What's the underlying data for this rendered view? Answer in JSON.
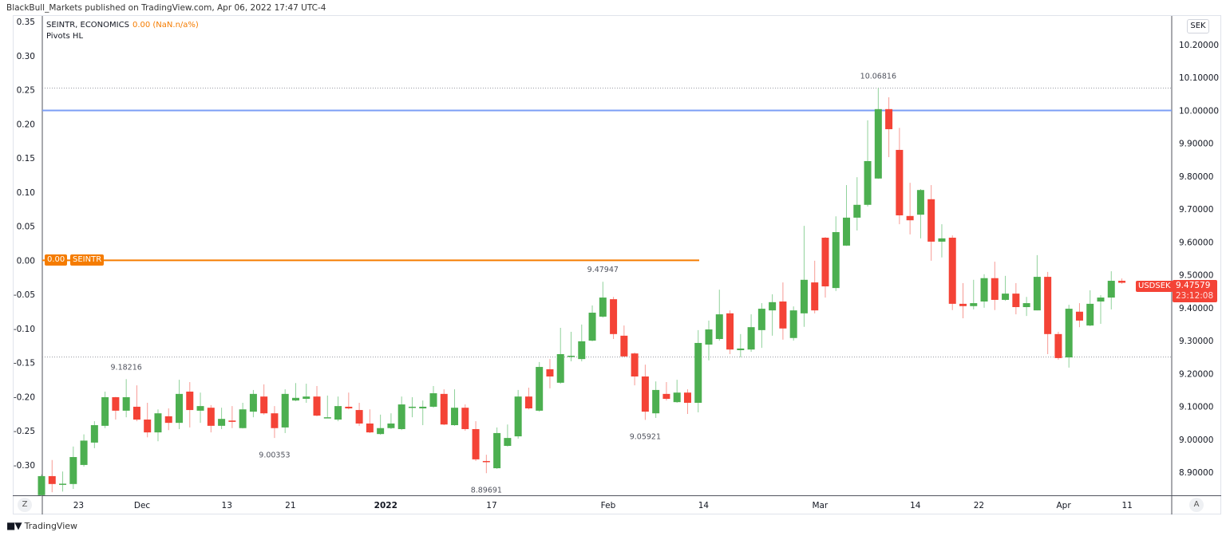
{
  "header": {
    "published": "BlackBull_Markets published on TradingView.com, Apr 06, 2022 17:47 UTC-4"
  },
  "legend": {
    "symbol": "SEINTR, ECONOMICS",
    "value": "0.00 (NaN.n/a%)",
    "indicator": "Pivots HL"
  },
  "currency_button": "SEK",
  "left_axis": {
    "labels": [
      "0.35",
      "0.30",
      "0.25",
      "0.20",
      "0.15",
      "0.10",
      "0.05",
      "0.00",
      "-0.05",
      "-0.10",
      "-0.15",
      "-0.20",
      "-0.25",
      "-0.30"
    ],
    "values": [
      0.35,
      0.3,
      0.25,
      0.2,
      0.15,
      0.1,
      0.05,
      0.0,
      -0.05,
      -0.1,
      -0.15,
      -0.2,
      -0.25,
      -0.3
    ]
  },
  "right_axis": {
    "labels": [
      "10.20000",
      "10.10000",
      "10.00000",
      "9.90000",
      "9.80000",
      "9.70000",
      "9.60000",
      "9.50000",
      "9.40000",
      "9.30000",
      "9.20000",
      "9.10000",
      "9.00000",
      "8.90000"
    ],
    "values": [
      10.2,
      10.1,
      10.0,
      9.9,
      9.8,
      9.7,
      9.6,
      9.5,
      9.4,
      9.3,
      9.2,
      9.1,
      9.0,
      8.9
    ]
  },
  "time_axis": [
    {
      "label": "23",
      "index": 3.5,
      "bold": false
    },
    {
      "label": "Dec",
      "index": 9.5,
      "bold": false
    },
    {
      "label": "13",
      "index": 17.5,
      "bold": false
    },
    {
      "label": "21",
      "index": 23.5,
      "bold": false
    },
    {
      "label": "2022",
      "index": 32.5,
      "bold": true
    },
    {
      "label": "17",
      "index": 42.5,
      "bold": false
    },
    {
      "label": "Feb",
      "index": 53.5,
      "bold": false
    },
    {
      "label": "14",
      "index": 62.5,
      "bold": false
    },
    {
      "label": "Mar",
      "index": 73.5,
      "bold": false
    },
    {
      "label": "14",
      "index": 82.5,
      "bold": false
    },
    {
      "label": "22",
      "index": 88.5,
      "bold": false
    },
    {
      "label": "Apr",
      "index": 96.5,
      "bold": false
    },
    {
      "label": "11",
      "index": 102.5,
      "bold": false
    }
  ],
  "buttons": {
    "zoom": "Z",
    "auto": "A"
  },
  "seintr": {
    "value_label": "0.00",
    "name_label": "SEINTR",
    "value": 0.0,
    "color": "#f57c00"
  },
  "usdsek": {
    "name_label": "USDSEK",
    "price_label": "9.47579",
    "countdown": "23:12:08",
    "color": "#f44336"
  },
  "levels": {
    "resistance": 10.0,
    "resistance_color": "#7b9ef5",
    "dotted": [
      10.06816,
      9.25
    ]
  },
  "pivots": [
    {
      "label": "9.18216",
      "index": 8,
      "price": 9.18216,
      "type": "high"
    },
    {
      "label": "9.00353",
      "index": 22,
      "price": 9.00353,
      "type": "low"
    },
    {
      "label": "8.89691",
      "index": 42,
      "price": 8.89691,
      "type": "low"
    },
    {
      "label": "9.47947",
      "index": 53,
      "price": 9.47947,
      "type": "high"
    },
    {
      "label": "9.05921",
      "index": 57,
      "price": 9.05921,
      "type": "low"
    },
    {
      "label": "10.06816",
      "index": 79,
      "price": 10.06816,
      "type": "high"
    }
  ],
  "colors": {
    "up": "#4caf50",
    "down": "#f44336",
    "up_wick": "#8fd19a",
    "down_wick": "#f79a94"
  },
  "footer": {
    "brand": "TradingView",
    "logo": "17"
  },
  "chart_data": {
    "type": "candlestick",
    "symbol": "USDSEK",
    "ylim": [
      8.84,
      10.24
    ],
    "ohlc": [
      [
        8.83,
        8.893,
        8.828,
        8.888
      ],
      [
        8.888,
        8.937,
        8.839,
        8.864
      ],
      [
        8.864,
        8.902,
        8.841,
        8.865
      ],
      [
        8.864,
        8.978,
        8.849,
        8.946
      ],
      [
        8.922,
        9.015,
        8.917,
        8.996
      ],
      [
        8.99,
        9.055,
        8.973,
        9.043
      ],
      [
        9.041,
        9.145,
        9.034,
        9.128
      ],
      [
        9.128,
        9.129,
        9.06,
        9.087
      ],
      [
        9.087,
        9.183,
        9.067,
        9.128
      ],
      [
        9.099,
        9.164,
        9.055,
        9.06
      ],
      [
        9.06,
        9.111,
        9.006,
        9.021
      ],
      [
        9.021,
        9.091,
        8.994,
        9.079
      ],
      [
        9.07,
        9.094,
        9.028,
        9.05
      ],
      [
        9.05,
        9.181,
        9.031,
        9.138
      ],
      [
        9.145,
        9.174,
        9.036,
        9.089
      ],
      [
        9.087,
        9.142,
        9.05,
        9.101
      ],
      [
        9.096,
        9.104,
        9.021,
        9.041
      ],
      [
        9.041,
        9.096,
        9.031,
        9.062
      ],
      [
        9.057,
        9.101,
        9.034,
        9.053
      ],
      [
        9.034,
        9.111,
        9.033,
        9.091
      ],
      [
        9.084,
        9.15,
        9.067,
        9.138
      ],
      [
        9.13,
        9.167,
        9.075,
        9.079
      ],
      [
        9.079,
        9.101,
        9.004,
        9.034
      ],
      [
        9.036,
        9.152,
        9.019,
        9.138
      ],
      [
        9.118,
        9.171,
        9.116,
        9.126
      ],
      [
        9.123,
        9.169,
        9.111,
        9.13
      ],
      [
        9.13,
        9.162,
        9.07,
        9.072
      ],
      [
        9.065,
        9.133,
        9.064,
        9.067
      ],
      [
        9.06,
        9.13,
        9.055,
        9.101
      ],
      [
        9.099,
        9.142,
        9.091,
        9.094
      ],
      [
        9.089,
        9.111,
        9.041,
        9.048
      ],
      [
        9.048,
        9.091,
        9.019,
        9.021
      ],
      [
        9.016,
        9.075,
        9.014,
        9.034
      ],
      [
        9.034,
        9.079,
        9.031,
        9.048
      ],
      [
        9.031,
        9.13,
        9.028,
        9.106
      ],
      [
        9.096,
        9.128,
        9.067,
        9.099
      ],
      [
        9.094,
        9.118,
        9.043,
        9.099
      ],
      [
        9.099,
        9.162,
        9.096,
        9.14
      ],
      [
        9.138,
        9.152,
        9.043,
        9.045
      ],
      [
        9.043,
        9.152,
        9.041,
        9.096
      ],
      [
        9.096,
        9.106,
        9.026,
        9.031
      ],
      [
        9.031,
        9.055,
        8.934,
        8.939
      ],
      [
        8.934,
        8.953,
        8.897,
        8.931
      ],
      [
        8.912,
        9.036,
        8.91,
        9.019
      ],
      [
        8.98,
        9.045,
        8.978,
        9.004
      ],
      [
        9.009,
        9.15,
        9.002,
        9.13
      ],
      [
        9.13,
        9.157,
        9.091,
        9.094
      ],
      [
        9.087,
        9.235,
        9.084,
        9.22
      ],
      [
        9.213,
        9.244,
        9.155,
        9.191
      ],
      [
        9.172,
        9.339,
        9.169,
        9.259
      ],
      [
        9.252,
        9.327,
        9.237,
        9.254
      ],
      [
        9.244,
        9.349,
        9.237,
        9.298
      ],
      [
        9.3,
        9.407,
        9.298,
        9.385
      ],
      [
        9.373,
        9.479,
        9.37,
        9.431
      ],
      [
        9.426,
        9.433,
        9.305,
        9.32
      ],
      [
        9.315,
        9.346,
        9.251,
        9.252
      ],
      [
        9.261,
        9.264,
        9.164,
        9.191
      ],
      [
        9.191,
        9.227,
        9.059,
        9.084
      ],
      [
        9.079,
        9.176,
        9.065,
        9.15
      ],
      [
        9.138,
        9.174,
        9.118,
        9.123
      ],
      [
        9.113,
        9.181,
        9.111,
        9.142
      ],
      [
        9.142,
        9.152,
        9.077,
        9.111
      ],
      [
        9.111,
        9.332,
        9.082,
        9.293
      ],
      [
        9.288,
        9.361,
        9.24,
        9.334
      ],
      [
        9.305,
        9.455,
        9.3,
        9.38
      ],
      [
        9.383,
        9.392,
        9.259,
        9.273
      ],
      [
        9.271,
        9.32,
        9.249,
        9.276
      ],
      [
        9.273,
        9.38,
        9.266,
        9.341
      ],
      [
        9.332,
        9.414,
        9.278,
        9.397
      ],
      [
        9.392,
        9.441,
        9.315,
        9.417
      ],
      [
        9.419,
        9.477,
        9.303,
        9.337
      ],
      [
        9.308,
        9.404,
        9.3,
        9.392
      ],
      [
        9.383,
        9.649,
        9.342,
        9.485
      ],
      [
        9.477,
        9.543,
        9.383,
        9.392
      ],
      [
        9.613,
        9.615,
        9.431,
        9.465
      ],
      [
        9.46,
        9.678,
        9.451,
        9.63
      ],
      [
        9.589,
        9.773,
        9.588,
        9.674
      ],
      [
        9.674,
        9.797,
        9.635,
        9.713
      ],
      [
        9.713,
        9.97,
        9.708,
        9.846
      ],
      [
        9.793,
        10.068,
        9.792,
        10.004
      ],
      [
        10.004,
        10.04,
        9.858,
        9.943
      ],
      [
        9.88,
        9.947,
        9.654,
        9.681
      ],
      [
        9.679,
        9.78,
        9.623,
        9.666
      ],
      [
        9.683,
        9.761,
        9.611,
        9.758
      ],
      [
        9.73,
        9.773,
        9.543,
        9.601
      ],
      [
        9.601,
        9.654,
        9.553,
        9.611
      ],
      [
        9.613,
        9.62,
        9.393,
        9.412
      ],
      [
        9.412,
        9.475,
        9.368,
        9.405
      ],
      [
        9.405,
        9.485,
        9.395,
        9.414
      ],
      [
        9.419,
        9.502,
        9.4,
        9.49
      ],
      [
        9.49,
        9.54,
        9.393,
        9.424
      ],
      [
        9.424,
        9.497,
        9.421,
        9.443
      ],
      [
        9.443,
        9.475,
        9.38,
        9.402
      ],
      [
        9.402,
        9.433,
        9.375,
        9.414
      ],
      [
        9.392,
        9.56,
        9.392,
        9.494
      ],
      [
        9.494,
        9.509,
        9.259,
        9.32
      ],
      [
        9.32,
        9.327,
        9.242,
        9.247
      ],
      [
        9.249,
        9.409,
        9.218,
        9.397
      ],
      [
        9.388,
        9.414,
        9.341,
        9.361
      ],
      [
        9.346,
        9.453,
        9.344,
        9.412
      ],
      [
        9.419,
        9.438,
        9.351,
        9.431
      ],
      [
        9.431,
        9.511,
        9.395,
        9.482
      ],
      [
        9.482,
        9.489,
        9.473,
        9.476
      ]
    ]
  }
}
